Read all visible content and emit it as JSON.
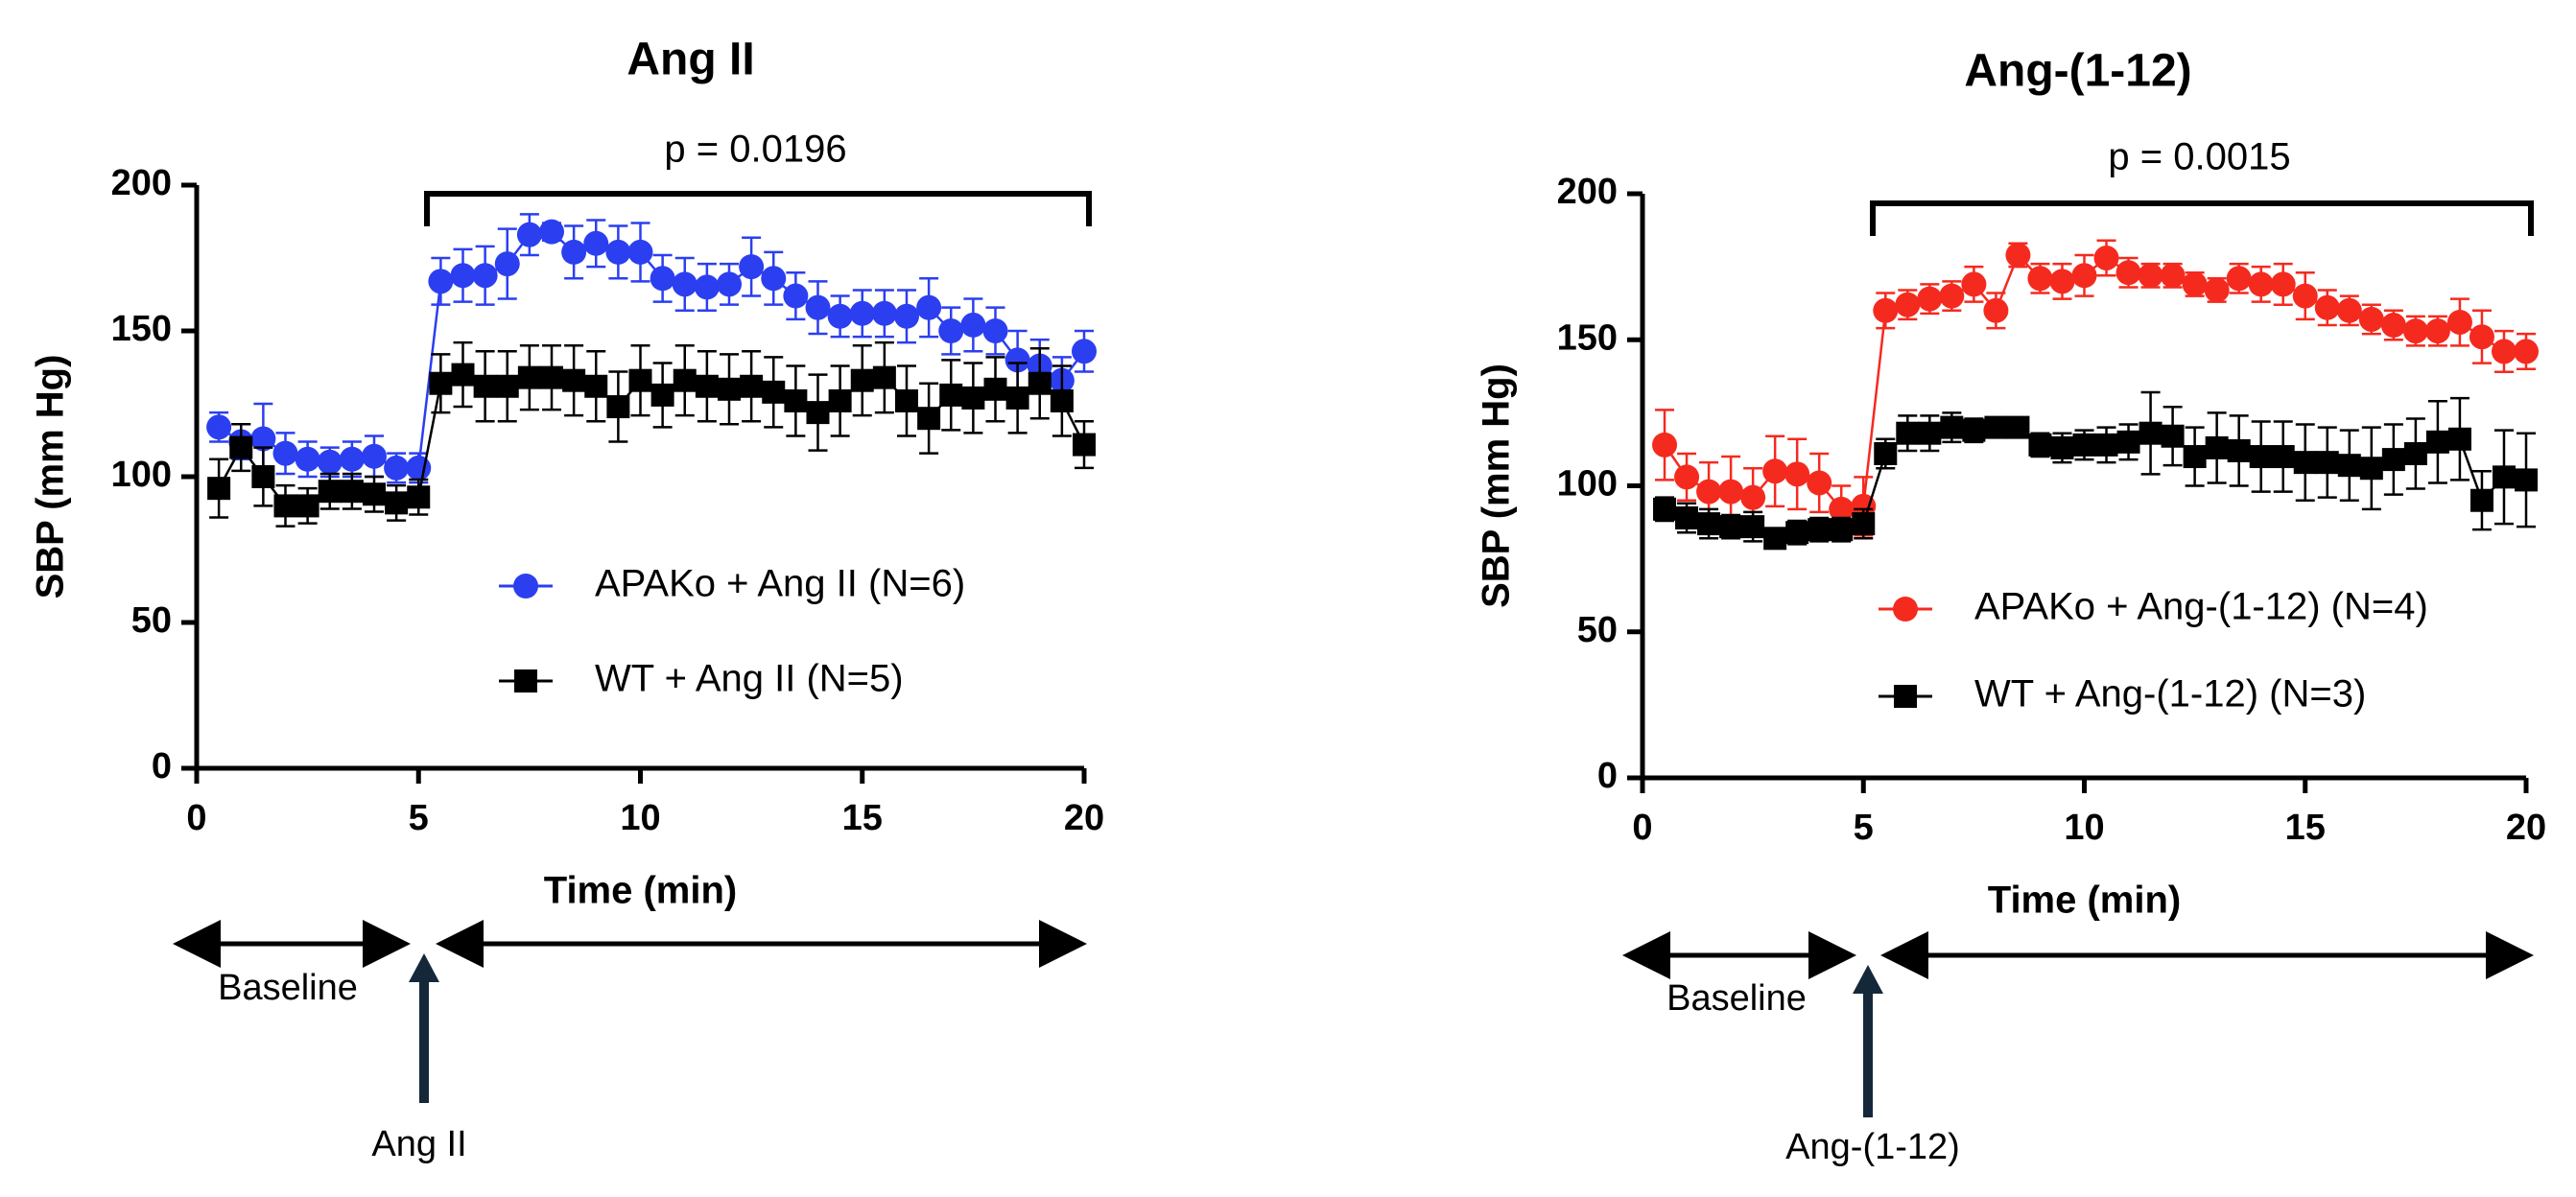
{
  "chart_data": [
    {
      "type": "line",
      "title": "Ang II",
      "x_label": "Time (min)",
      "y_label": "SBP (mm Hg)",
      "annotations": [
        "p = 0.0196",
        "Baseline",
        "Ang II"
      ],
      "x": [
        0.5,
        1,
        1.5,
        2,
        2.5,
        3,
        3.5,
        4,
        4.5,
        5,
        5.5,
        6,
        6.5,
        7,
        7.5,
        8,
        8.5,
        9,
        9.5,
        10,
        10.5,
        11,
        11.5,
        12,
        12.5,
        13,
        13.5,
        14,
        14.5,
        15,
        15.5,
        16,
        16.5,
        17,
        17.5,
        18,
        18.5,
        19,
        19.5,
        20
      ],
      "xlim": [
        0,
        20
      ],
      "xticks": [
        0,
        5,
        10,
        15,
        20
      ],
      "ylim": [
        0,
        200
      ],
      "yticks": [
        0,
        50,
        100,
        150,
        200
      ],
      "series": [
        {
          "name": "APAKo + Ang II (N=6)",
          "color": "#2b3ff0",
          "marker": "circle",
          "values": [
            117,
            112,
            113,
            108,
            106,
            105,
            106,
            107,
            103,
            103,
            167,
            169,
            169,
            173,
            183,
            184,
            177,
            180,
            177,
            177,
            168,
            166,
            165,
            166,
            172,
            168,
            162,
            158,
            155,
            156,
            156,
            155,
            158,
            150,
            152,
            150,
            140,
            138,
            133,
            143
          ],
          "errors": [
            5,
            6,
            12,
            7,
            6,
            5,
            6,
            7,
            5,
            5,
            8,
            9,
            10,
            12,
            7,
            3,
            9,
            8,
            9,
            10,
            8,
            9,
            8,
            7,
            10,
            9,
            8,
            9,
            7,
            8,
            8,
            9,
            10,
            8,
            9,
            8,
            10,
            9,
            8,
            7
          ]
        },
        {
          "name": "WT + Ang II (N=5)",
          "color": "#000000",
          "marker": "square",
          "values": [
            96,
            110,
            100,
            90,
            90,
            95,
            95,
            94,
            91,
            93,
            132,
            135,
            131,
            131,
            134,
            134,
            133,
            131,
            124,
            133,
            128,
            133,
            131,
            130,
            131,
            129,
            126,
            122,
            126,
            133,
            134,
            126,
            120,
            128,
            127,
            130,
            127,
            132,
            126,
            111
          ],
          "errors": [
            10,
            8,
            10,
            7,
            6,
            6,
            6,
            6,
            6,
            6,
            10,
            11,
            12,
            12,
            11,
            11,
            12,
            12,
            12,
            12,
            11,
            12,
            12,
            12,
            12,
            12,
            12,
            13,
            12,
            12,
            12,
            12,
            12,
            12,
            12,
            11,
            12,
            12,
            12,
            8
          ]
        }
      ]
    },
    {
      "type": "line",
      "title": "Ang-(1-12)",
      "x_label": "Time (min)",
      "y_label": "SBP (mm Hg)",
      "annotations": [
        "p = 0.0015",
        "Baseline",
        "Ang-(1-12)"
      ],
      "x": [
        0.5,
        1,
        1.5,
        2,
        2.5,
        3,
        3.5,
        4,
        4.5,
        5,
        5.5,
        6,
        6.5,
        7,
        7.5,
        8,
        8.5,
        9,
        9.5,
        10,
        10.5,
        11,
        11.5,
        12,
        12.5,
        13,
        13.5,
        14,
        14.5,
        15,
        15.5,
        16,
        16.5,
        17,
        17.5,
        18,
        18.5,
        19,
        19.5,
        20
      ],
      "xlim": [
        0,
        20
      ],
      "xticks": [
        0,
        5,
        10,
        15,
        20
      ],
      "ylim": [
        0,
        200
      ],
      "yticks": [
        0,
        50,
        100,
        150,
        200
      ],
      "series": [
        {
          "name": "APAKo + Ang-(1-12) (N=4)",
          "color": "#f52a1f",
          "marker": "circle",
          "values": [
            114,
            103,
            98,
            98,
            96,
            105,
            104,
            101,
            92,
            93,
            160,
            162,
            164,
            165,
            169,
            160,
            179,
            171,
            170,
            172,
            178,
            173,
            172,
            172,
            169,
            167,
            171,
            169,
            169,
            165,
            161,
            160,
            157,
            155,
            153,
            153,
            156,
            151,
            146,
            146
          ],
          "errors": [
            12,
            8,
            10,
            12,
            10,
            12,
            12,
            10,
            8,
            10,
            6,
            5,
            5,
            5,
            6,
            6,
            4,
            5,
            6,
            7,
            6,
            5,
            4,
            4,
            4,
            4,
            5,
            6,
            7,
            8,
            6,
            5,
            5,
            5,
            5,
            5,
            8,
            9,
            7,
            6
          ]
        },
        {
          "name": "WT + Ang-(1-12) (N=3)",
          "color": "#000000",
          "marker": "square",
          "values": [
            92,
            89,
            87,
            86,
            86,
            82,
            84,
            85,
            85,
            87,
            111,
            118,
            118,
            120,
            119,
            120,
            120,
            114,
            113,
            114,
            114,
            115,
            118,
            117,
            110,
            113,
            112,
            110,
            110,
            108,
            108,
            107,
            106,
            109,
            111,
            115,
            116,
            95,
            103,
            102
          ],
          "errors": [
            4,
            5,
            5,
            4,
            5,
            3,
            4,
            4,
            4,
            5,
            5,
            6,
            6,
            5,
            4,
            3,
            3,
            4,
            5,
            5,
            6,
            6,
            14,
            10,
            10,
            12,
            12,
            12,
            12,
            13,
            12,
            12,
            14,
            12,
            12,
            14,
            14,
            10,
            16,
            16
          ]
        }
      ]
    }
  ]
}
